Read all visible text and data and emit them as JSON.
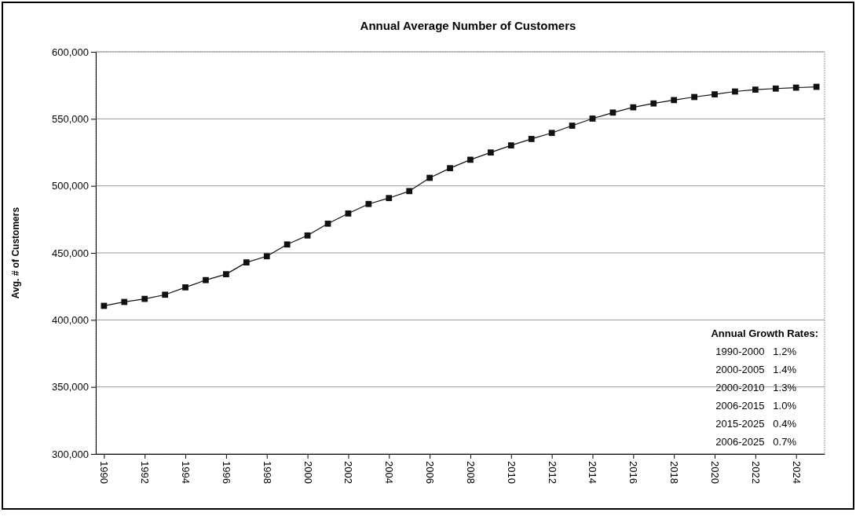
{
  "chart_data": {
    "type": "line",
    "title": "Annual Average Number of Customers",
    "ylabel": "Avg. # of Customers",
    "x": [
      1990,
      1991,
      1992,
      1993,
      1994,
      1995,
      1996,
      1997,
      1998,
      1999,
      2000,
      2001,
      2002,
      2003,
      2004,
      2005,
      2006,
      2007,
      2008,
      2009,
      2010,
      2011,
      2012,
      2013,
      2014,
      2015,
      2016,
      2017,
      2018,
      2019,
      2020,
      2021,
      2022,
      2023,
      2024,
      2025
    ],
    "series": [
      {
        "color": "#111111",
        "values": [
          410500,
          413400,
          415700,
          418800,
          424300,
          429700,
          434100,
          442900,
          447500,
          456300,
          463000,
          471800,
          479400,
          486500,
          490900,
          496100,
          506000,
          513200,
          519500,
          524900,
          530200,
          535000,
          539500,
          544900,
          550200,
          554700,
          558600,
          561500,
          564000,
          566300,
          568300,
          570400,
          571800,
          572600,
          573300,
          573900
        ]
      }
    ],
    "xlim": [
      1989.6,
      2025.4
    ],
    "xticks": [
      1990,
      1992,
      1994,
      1996,
      1998,
      2000,
      2002,
      2004,
      2006,
      2008,
      2010,
      2012,
      2014,
      2016,
      2018,
      2020,
      2022,
      2024
    ],
    "ylim": [
      300000,
      600000
    ],
    "yticks": [
      {
        "value": 300000,
        "label": "300,000"
      },
      {
        "value": 350000,
        "label": "350,000"
      },
      {
        "value": 400000,
        "label": "400,000"
      },
      {
        "value": 450000,
        "label": "450,000"
      },
      {
        "value": 500000,
        "label": "500,000"
      },
      {
        "value": 550000,
        "label": "550,000"
      },
      {
        "value": 600000,
        "label": "600,000"
      }
    ],
    "grid": "y",
    "marker": "square",
    "line_style": "solid",
    "annotations": [
      "Annual Growth Rates:",
      "1990-2000   1.2%",
      "2000-2005   1.4%",
      "2000-2010   1.3%",
      "2006-2015   1.0%",
      "2015-2025   0.4%",
      "2006-2025   0.7%"
    ]
  }
}
